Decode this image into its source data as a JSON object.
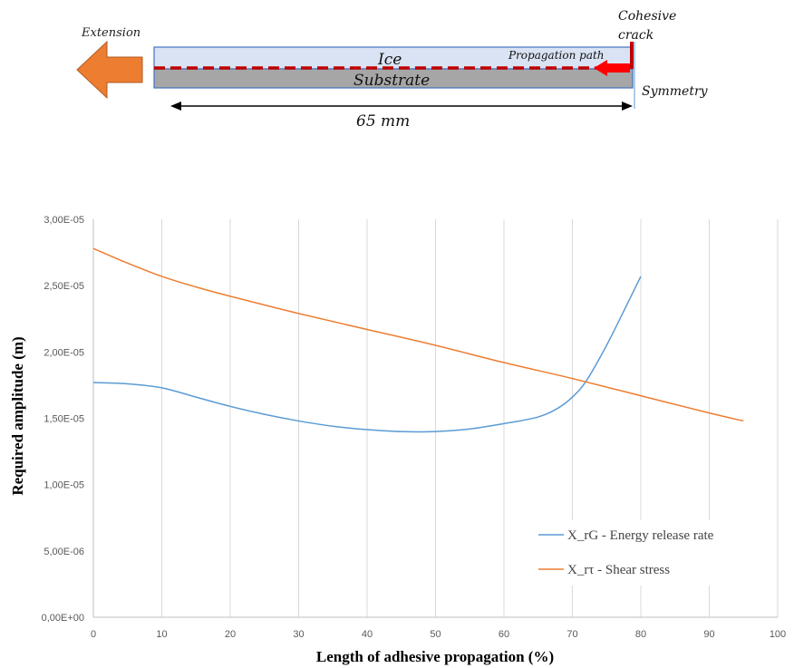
{
  "diagram": {
    "extension_label": "Extension",
    "ice_label": "Ice",
    "substrate_label": "Substrate",
    "propagation_label": "Propagation path",
    "cohesive_label_line1": "Cohesive",
    "cohesive_label_line2": "crack",
    "symmetry_label": "Symmetry",
    "dimension_label": "65 mm",
    "colors": {
      "ice": "#dae3f3",
      "substrate": "#a6a6a6",
      "crack": "#c00000",
      "arrow": "#ed7d31",
      "path_arrow": "#ff0000",
      "outline": "#4472c4"
    }
  },
  "chart_data": {
    "type": "line",
    "title": "",
    "xlabel": "Length of adhesive propagation (%)",
    "ylabel": "Required amplitude (m)",
    "xlim": [
      0,
      100
    ],
    "ylim": [
      0,
      3e-05
    ],
    "xticks": [
      "0",
      "10",
      "20",
      "30",
      "40",
      "50",
      "60",
      "70",
      "80",
      "90",
      "100"
    ],
    "yticks": [
      "0,00E+00",
      "5,00E-06",
      "1,00E-05",
      "1,50E-05",
      "2,00E-05",
      "2,50E-05",
      "3,00E-05"
    ],
    "grid": "vertical",
    "legend_position": "bottom-right",
    "series": [
      {
        "name": "X_rG - Energy release rate",
        "color": "#5b9bd5",
        "x": [
          0,
          5,
          10,
          15,
          20,
          25,
          30,
          35,
          40,
          45,
          50,
          55,
          60,
          65,
          68,
          70,
          72,
          75,
          78,
          80
        ],
        "y": [
          1.77e-05,
          1.76e-05,
          1.73e-05,
          1.66e-05,
          1.59e-05,
          1.53e-05,
          1.48e-05,
          1.44e-05,
          1.415e-05,
          1.4e-05,
          1.4e-05,
          1.42e-05,
          1.46e-05,
          1.51e-05,
          1.58e-05,
          1.66e-05,
          1.78e-05,
          2.05e-05,
          2.36e-05,
          2.57e-05
        ]
      },
      {
        "name": "X_rτ - Shear stress",
        "color": "#ed7d31",
        "x": [
          0,
          5,
          10,
          15,
          20,
          30,
          40,
          50,
          60,
          70,
          80,
          90,
          95
        ],
        "y": [
          2.78e-05,
          2.67e-05,
          2.57e-05,
          2.49e-05,
          2.42e-05,
          2.29e-05,
          2.17e-05,
          2.05e-05,
          1.92e-05,
          1.8e-05,
          1.67e-05,
          1.54e-05,
          1.48e-05
        ]
      }
    ]
  }
}
